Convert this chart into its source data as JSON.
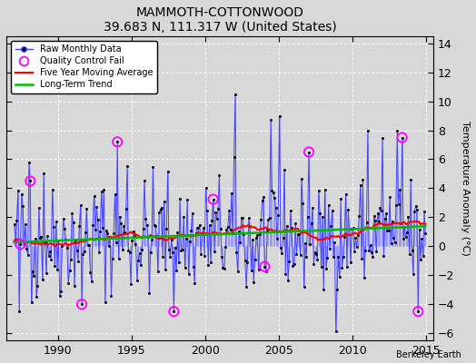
{
  "title": "MAMMOTH-COTTONWOOD",
  "subtitle": "39.683 N, 111.317 W (United States)",
  "ylabel": "Temperature Anomaly (°C)",
  "attribution": "Berkeley Earth",
  "xlim": [
    1986.5,
    2015.5
  ],
  "ylim": [
    -6.5,
    14.5
  ],
  "yticks": [
    -6,
    -4,
    -2,
    0,
    2,
    4,
    6,
    8,
    10,
    12,
    14
  ],
  "xticks": [
    1990,
    1995,
    2000,
    2005,
    2010,
    2015
  ],
  "bg_color": "#d8d8d8",
  "plot_bg_color": "#d8d8d8",
  "line_color": "#4444ff",
  "stem_color": "#8888ff",
  "marker_color": "#000000",
  "qc_color": "#ff00ff",
  "moving_avg_color": "#ff0000",
  "trend_color": "#00bb00",
  "seed": 42
}
